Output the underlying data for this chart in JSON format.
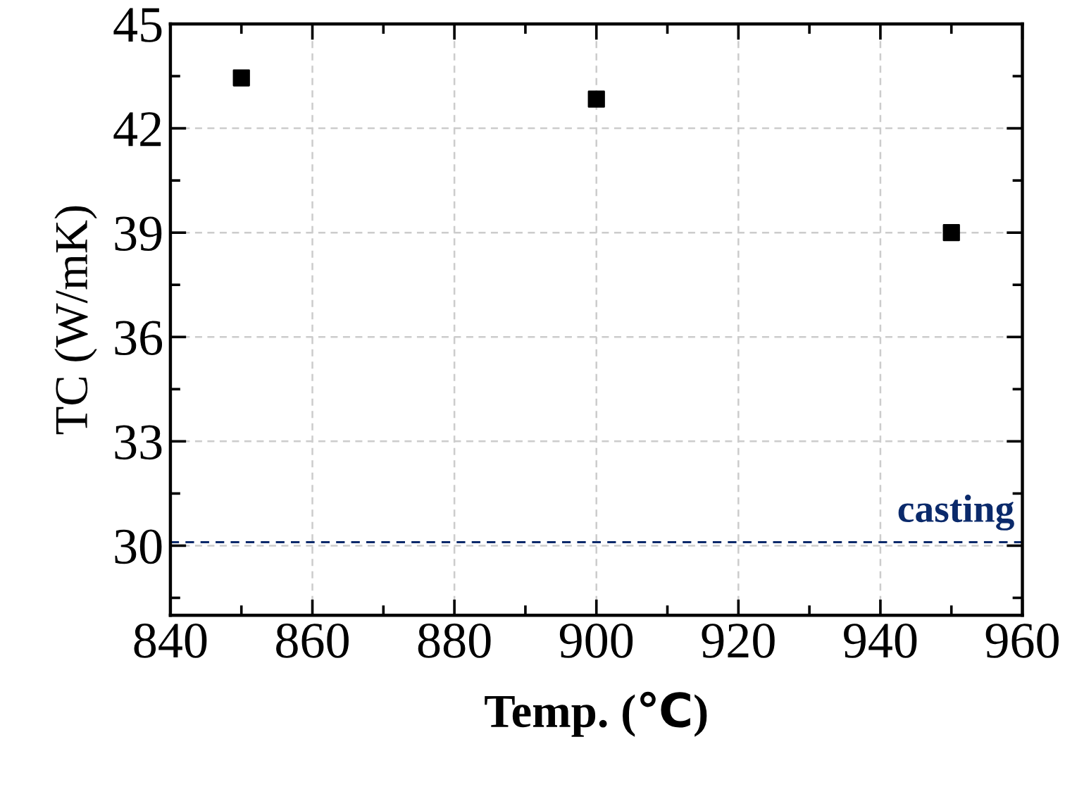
{
  "chart_data": {
    "type": "scatter",
    "xlabel": "Temp. (℃)",
    "ylabel": "TC (W/mK)",
    "x": [
      850,
      900,
      950
    ],
    "series": [
      {
        "color": "#000000",
        "values": [
          43.45,
          42.84,
          39.0
        ]
      }
    ],
    "marker": "square",
    "xlim": [
      840,
      960
    ],
    "xticks": [
      840,
      860,
      880,
      900,
      920,
      940,
      960
    ],
    "ylim": [
      28,
      45
    ],
    "yticks": [
      30,
      33,
      36,
      39,
      42,
      45
    ],
    "grid": true,
    "ref_lines": [
      {
        "axis": "y",
        "value": 30.1,
        "label": "casting",
        "color": "#0b2a6b",
        "line_style": "dashed"
      }
    ]
  }
}
